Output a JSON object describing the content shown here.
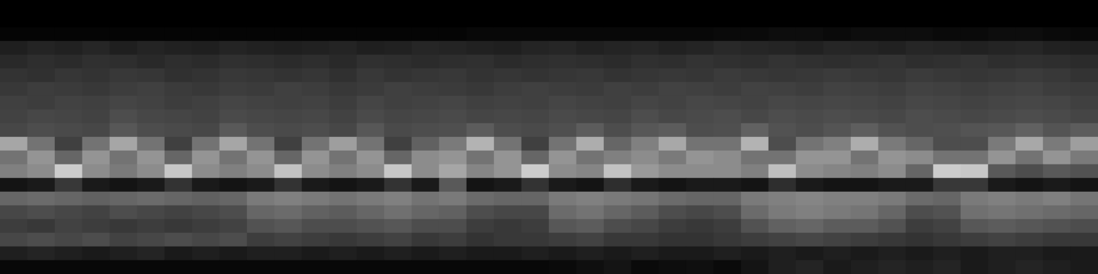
{
  "chart_data": {
    "type": "heatmap",
    "tick_labels": false,
    "grid": false,
    "color_range": [
      0,
      100
    ],
    "cells": [
      [
        0,
        0,
        0,
        0,
        0,
        0,
        0,
        0,
        0,
        0,
        0,
        0,
        0,
        0,
        0,
        0,
        0,
        0,
        0,
        0,
        0,
        0,
        0,
        0,
        0,
        0,
        0,
        0,
        0,
        0,
        0,
        0,
        0,
        0,
        0,
        0,
        0,
        0,
        0,
        0
      ],
      [
        0,
        0,
        0,
        0,
        0,
        0,
        0,
        0,
        0,
        0,
        0,
        0,
        0,
        0,
        0,
        0,
        0,
        0,
        0,
        0,
        0,
        0,
        0,
        0,
        0,
        0,
        0,
        0,
        0,
        0,
        0,
        0,
        0,
        0,
        0,
        0,
        0,
        0,
        0,
        0
      ],
      [
        2,
        2,
        2,
        2,
        2,
        2,
        2,
        2,
        2,
        2,
        2,
        2,
        2,
        2,
        2,
        2,
        2,
        3,
        3,
        3,
        3,
        3,
        3,
        3,
        3,
        3,
        4,
        4,
        5,
        5,
        4,
        5,
        5,
        5,
        4,
        4,
        5,
        5,
        4,
        3
      ],
      [
        12,
        14,
        13,
        15,
        12,
        14,
        13,
        12,
        14,
        13,
        12,
        13,
        14,
        12,
        13,
        15,
        14,
        13,
        12,
        14,
        15,
        13,
        14,
        15,
        13,
        14,
        16,
        15,
        14,
        13,
        15,
        14,
        13,
        15,
        14,
        13,
        14,
        15,
        13,
        12
      ],
      [
        16,
        18,
        17,
        19,
        18,
        16,
        18,
        17,
        19,
        18,
        17,
        18,
        16,
        19,
        18,
        17,
        18,
        19,
        17,
        18,
        19,
        18,
        17,
        19,
        18,
        20,
        19,
        18,
        20,
        19,
        18,
        19,
        20,
        18,
        19,
        20,
        18,
        19,
        18,
        17
      ],
      [
        20,
        19,
        21,
        20,
        22,
        21,
        19,
        20,
        22,
        21,
        20,
        21,
        19,
        22,
        20,
        21,
        22,
        20,
        21,
        20,
        21,
        22,
        20,
        21,
        22,
        21,
        23,
        22,
        21,
        22,
        23,
        22,
        21,
        23,
        22,
        21,
        22,
        23,
        22,
        20
      ],
      [
        22,
        24,
        23,
        22,
        24,
        25,
        23,
        22,
        24,
        23,
        25,
        24,
        22,
        23,
        25,
        24,
        23,
        22,
        24,
        25,
        24,
        23,
        25,
        24,
        26,
        25,
        24,
        26,
        25,
        24,
        26,
        25,
        24,
        26,
        25,
        24,
        25,
        26,
        24,
        23
      ],
      [
        25,
        24,
        26,
        25,
        27,
        26,
        24,
        25,
        27,
        26,
        25,
        26,
        24,
        27,
        25,
        26,
        27,
        25,
        26,
        25,
        27,
        26,
        25,
        27,
        26,
        28,
        27,
        26,
        28,
        27,
        28,
        27,
        26,
        28,
        27,
        26,
        27,
        28,
        27,
        25
      ],
      [
        26,
        28,
        27,
        26,
        30,
        28,
        27,
        26,
        29,
        28,
        27,
        28,
        26,
        29,
        27,
        28,
        29,
        27,
        28,
        27,
        29,
        28,
        27,
        30,
        28,
        29,
        30,
        28,
        30,
        29,
        30,
        29,
        28,
        30,
        29,
        28,
        29,
        30,
        29,
        27
      ],
      [
        28,
        30,
        29,
        28,
        34,
        30,
        29,
        28,
        35,
        30,
        29,
        30,
        28,
        34,
        29,
        30,
        31,
        36,
        30,
        29,
        31,
        36,
        30,
        34,
        36,
        30,
        31,
        38,
        32,
        30,
        33,
        37,
        32,
        30,
        31,
        33,
        34,
        38,
        33,
        36
      ],
      [
        65,
        45,
        25,
        45,
        65,
        45,
        25,
        45,
        65,
        45,
        25,
        45,
        62,
        45,
        25,
        38,
        48,
        70,
        45,
        25,
        45,
        68,
        40,
        50,
        66,
        45,
        45,
        70,
        30,
        45,
        50,
        68,
        48,
        40,
        30,
        30,
        48,
        66,
        48,
        62
      ],
      [
        45,
        58,
        40,
        58,
        45,
        58,
        40,
        58,
        45,
        58,
        40,
        58,
        45,
        58,
        40,
        55,
        58,
        45,
        58,
        40,
        58,
        45,
        50,
        55,
        48,
        58,
        55,
        45,
        45,
        58,
        58,
        45,
        58,
        55,
        45,
        45,
        58,
        45,
        58,
        48
      ],
      [
        50,
        55,
        80,
        55,
        48,
        55,
        78,
        55,
        50,
        55,
        76,
        55,
        50,
        55,
        78,
        55,
        65,
        52,
        58,
        80,
        55,
        52,
        76,
        60,
        55,
        55,
        55,
        50,
        75,
        55,
        52,
        50,
        55,
        40,
        80,
        78,
        35,
        30,
        35,
        32
      ],
      [
        8,
        10,
        22,
        10,
        8,
        10,
        20,
        10,
        8,
        10,
        20,
        10,
        8,
        10,
        20,
        10,
        35,
        8,
        10,
        20,
        10,
        8,
        18,
        10,
        8,
        10,
        10,
        8,
        18,
        10,
        8,
        8,
        10,
        10,
        22,
        22,
        10,
        8,
        10,
        8
      ],
      [
        40,
        42,
        40,
        38,
        40,
        42,
        40,
        38,
        40,
        48,
        50,
        48,
        45,
        48,
        50,
        45,
        48,
        42,
        40,
        40,
        48,
        50,
        48,
        46,
        42,
        40,
        40,
        48,
        50,
        52,
        50,
        50,
        48,
        42,
        40,
        48,
        50,
        48,
        50,
        46
      ],
      [
        28,
        30,
        28,
        26,
        30,
        28,
        26,
        28,
        30,
        40,
        42,
        38,
        36,
        40,
        44,
        40,
        38,
        30,
        28,
        28,
        42,
        45,
        40,
        36,
        30,
        28,
        30,
        42,
        48,
        50,
        48,
        46,
        40,
        30,
        32,
        44,
        46,
        44,
        42,
        40
      ],
      [
        24,
        22,
        26,
        24,
        22,
        24,
        22,
        24,
        26,
        32,
        34,
        30,
        30,
        32,
        34,
        30,
        30,
        24,
        22,
        24,
        34,
        36,
        30,
        28,
        24,
        22,
        24,
        32,
        38,
        40,
        36,
        36,
        32,
        24,
        26,
        34,
        36,
        34,
        32,
        30
      ],
      [
        28,
        30,
        28,
        30,
        26,
        28,
        30,
        28,
        30,
        24,
        26,
        24,
        22,
        24,
        26,
        22,
        24,
        20,
        22,
        22,
        24,
        26,
        22,
        22,
        20,
        20,
        22,
        24,
        26,
        28,
        26,
        24,
        22,
        20,
        22,
        24,
        26,
        24,
        22,
        22
      ],
      [
        12,
        14,
        12,
        10,
        12,
        14,
        10,
        12,
        10,
        12,
        12,
        10,
        12,
        10,
        12,
        10,
        12,
        10,
        10,
        12,
        10,
        12,
        10,
        12,
        10,
        10,
        12,
        10,
        12,
        10,
        12,
        10,
        12,
        10,
        12,
        10,
        12,
        12,
        10,
        10
      ],
      [
        3,
        3,
        3,
        3,
        3,
        3,
        3,
        3,
        3,
        3,
        3,
        3,
        3,
        3,
        3,
        3,
        3,
        3,
        3,
        3,
        4,
        6,
        8,
        4,
        5,
        6,
        4,
        8,
        12,
        14,
        10,
        12,
        14,
        12,
        14,
        10,
        12,
        14,
        12,
        10
      ]
    ]
  }
}
